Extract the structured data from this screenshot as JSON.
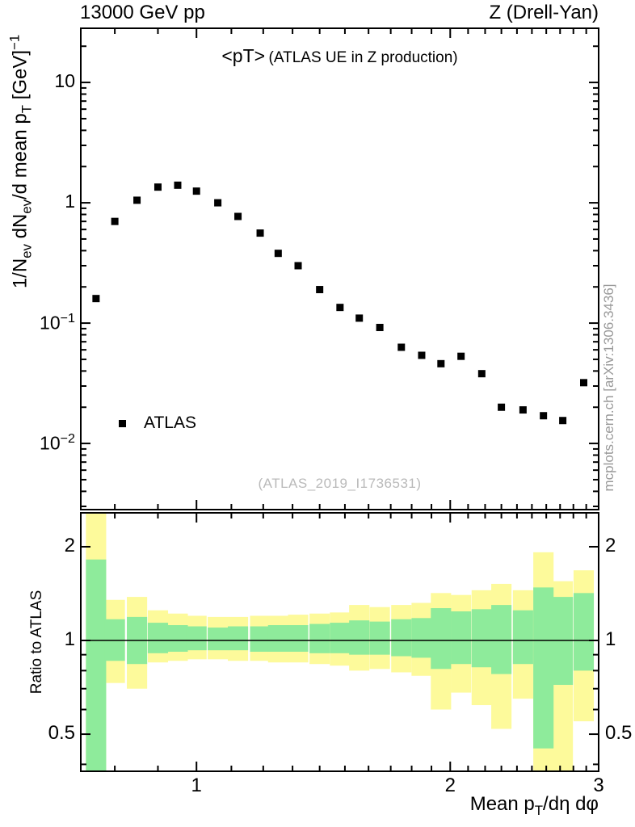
{
  "header": {
    "left_title": "13000 GeV pp",
    "right_title": "Z (Drell-Yan)"
  },
  "main_panel": {
    "title": {
      "main": "<pT>",
      "detail": "(ATLAS UE in Z production)"
    },
    "ylabel_parts": [
      {
        "t": "1/N"
      },
      {
        "sub": "ev"
      },
      {
        "t": " dN"
      },
      {
        "sub": "ev"
      },
      {
        "t": "/d mean p"
      },
      {
        "sub": "T"
      },
      {
        "t": " [GeV]"
      },
      {
        "sup": "−1"
      }
    ],
    "legend": {
      "marker": "black-filled-square",
      "label": "ATLAS"
    },
    "watermark": "(ATLAS_2019_I1736531)",
    "side_note": "mcplots.cern.ch [arXiv:1306.3436]"
  },
  "ratio_panel": {
    "ylabel": "Ratio to ATLAS"
  },
  "xaxis": {
    "label_parts": [
      {
        "t": "Mean p"
      },
      {
        "sub": "T"
      },
      {
        "t": "/dη dφ"
      }
    ]
  },
  "colors": {
    "marker": "#000000",
    "band_yellow": "#fdfa9b",
    "band_green": "#8eeb9b",
    "watermark_gray": "#b9b9b9"
  },
  "chart_data": [
    {
      "type": "scatter",
      "title": "<pT> (ATLAS UE in Z production)",
      "xlabel": "Mean pT/dη dφ",
      "ylabel": "1/Nev dNev/d mean pT [GeV]^-1",
      "xscale": "log",
      "yscale": "log",
      "xlim": [
        0.729,
        3.0
      ],
      "ylim": [
        0.00282,
        28.2
      ],
      "x_major_ticks": [
        1,
        2,
        3
      ],
      "x_minor_ticks": [
        0.8,
        0.9,
        1.1,
        1.2,
        1.3,
        1.4,
        1.5,
        1.6,
        1.7,
        1.8,
        1.9,
        2.1,
        2.2,
        2.3,
        2.4,
        2.5,
        2.6,
        2.7,
        2.8,
        2.9
      ],
      "y_ticks": [
        {
          "value": 10,
          "base": "10"
        },
        {
          "value": 1,
          "base": "1"
        },
        {
          "value": 0.1,
          "base": "10",
          "exp": "−1"
        },
        {
          "value": 0.01,
          "base": "10",
          "exp": "−2"
        }
      ],
      "series": [
        {
          "name": "ATLAS",
          "marker": "filled-square",
          "color": "#000000",
          "x": [
            0.76,
            0.8,
            0.85,
            0.9,
            0.95,
            1.0,
            1.06,
            1.12,
            1.19,
            1.25,
            1.32,
            1.4,
            1.48,
            1.56,
            1.65,
            1.75,
            1.85,
            1.95,
            2.06,
            2.18,
            2.3,
            2.44,
            2.58,
            2.72,
            2.88
          ],
          "y": [
            0.16,
            0.7,
            1.05,
            1.35,
            1.4,
            1.25,
            1.0,
            0.77,
            0.56,
            0.38,
            0.3,
            0.19,
            0.135,
            0.11,
            0.092,
            0.063,
            0.054,
            0.046,
            0.053,
            0.038,
            0.02,
            0.019,
            0.017,
            0.0155,
            0.032
          ]
        }
      ]
    },
    {
      "type": "band-ratio",
      "ylabel": "Ratio to ATLAS",
      "yscale": "log",
      "ylim": [
        0.38,
        2.57
      ],
      "y_major_ticks": [
        0.5,
        1,
        2
      ],
      "y_minor_ticks": [
        0.4,
        0.6,
        0.7,
        0.8,
        0.9
      ],
      "reference_line": 1.0,
      "band_colors": {
        "outer": "#fdfa9b",
        "inner": "#8eeb9b"
      },
      "bin_halfwidth_factor": 1.0281,
      "bands": {
        "x": [
          0.76,
          0.8,
          0.85,
          0.9,
          0.95,
          1.0,
          1.06,
          1.12,
          1.19,
          1.25,
          1.32,
          1.4,
          1.48,
          1.56,
          1.65,
          1.75,
          1.85,
          1.95,
          2.06,
          2.18,
          2.3,
          2.44,
          2.58,
          2.72,
          2.88
        ],
        "outer_lo": [
          0.3,
          0.73,
          0.7,
          0.85,
          0.86,
          0.87,
          0.87,
          0.86,
          0.86,
          0.85,
          0.85,
          0.84,
          0.83,
          0.8,
          0.81,
          0.79,
          0.77,
          0.6,
          0.68,
          0.62,
          0.52,
          0.65,
          0.35,
          0.3,
          0.55
        ],
        "outer_hi": [
          2.6,
          1.35,
          1.38,
          1.25,
          1.22,
          1.2,
          1.19,
          1.19,
          1.2,
          1.2,
          1.21,
          1.22,
          1.23,
          1.3,
          1.28,
          1.3,
          1.32,
          1.42,
          1.4,
          1.45,
          1.52,
          1.45,
          1.92,
          1.55,
          1.68
        ],
        "inner_lo": [
          0.3,
          0.86,
          0.84,
          0.91,
          0.92,
          0.93,
          0.93,
          0.93,
          0.92,
          0.92,
          0.92,
          0.91,
          0.91,
          0.9,
          0.9,
          0.89,
          0.88,
          0.81,
          0.84,
          0.82,
          0.78,
          0.84,
          0.45,
          0.72,
          0.8
        ],
        "inner_hi": [
          1.82,
          1.17,
          1.19,
          1.14,
          1.12,
          1.11,
          1.1,
          1.11,
          1.11,
          1.12,
          1.12,
          1.13,
          1.14,
          1.16,
          1.15,
          1.17,
          1.18,
          1.27,
          1.24,
          1.26,
          1.3,
          1.25,
          1.48,
          1.38,
          1.42
        ]
      }
    }
  ]
}
